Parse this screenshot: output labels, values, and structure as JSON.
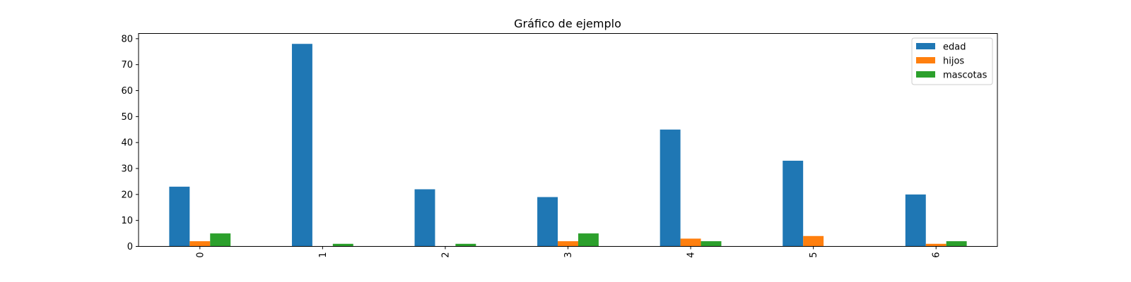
{
  "chart_data": {
    "type": "bar",
    "title": "Gráfico de ejemplo",
    "xlabel": "",
    "ylabel": "",
    "categories": [
      "0",
      "1",
      "2",
      "3",
      "4",
      "5",
      "6"
    ],
    "series": [
      {
        "name": "edad",
        "color": "#1f77b4",
        "values": [
          23,
          78,
          22,
          19,
          45,
          33,
          20
        ]
      },
      {
        "name": "hijos",
        "color": "#ff7f0e",
        "values": [
          2,
          0,
          0,
          2,
          3,
          4,
          1
        ]
      },
      {
        "name": "mascotas",
        "color": "#2ca02c",
        "values": [
          5,
          1,
          1,
          5,
          2,
          0,
          2
        ]
      }
    ],
    "ylim": [
      0,
      82
    ],
    "yticks": [
      0,
      10,
      20,
      30,
      40,
      50,
      60,
      70,
      80
    ],
    "x_tick_rotation": "vertical",
    "grid": false,
    "legend": "top-right"
  }
}
